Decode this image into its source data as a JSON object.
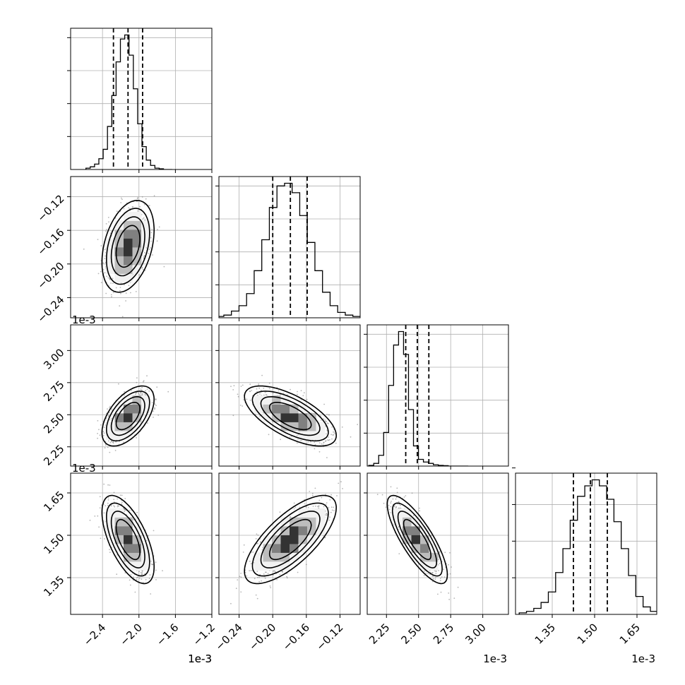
{
  "chart_data": {
    "type": "corner",
    "description_of_panels": "lower-triangular matrix of 1-D histograms and 2-D density plots with contours",
    "offset_label": "1e-3",
    "params": [
      {
        "index": 0,
        "range": [
          -2.75,
          -1.2
        ],
        "ticks": [
          -2.4,
          -2.0,
          -1.6,
          -1.2
        ],
        "tick_labels": [
          "−2.4",
          "−2.0",
          "−1.6",
          "−1.2"
        ],
        "quantiles": [
          -2.28,
          -2.12,
          -1.96
        ],
        "mean": -2.12,
        "sd": 0.11,
        "hist_counts": [
          1,
          2,
          4,
          8,
          15,
          32,
          55,
          80,
          97,
          100,
          85,
          60,
          34,
          17,
          7,
          3,
          1,
          0.5,
          0,
          0
        ]
      },
      {
        "index": 1,
        "range": [
          -0.264,
          -0.096
        ],
        "ticks": [
          -0.24,
          -0.2,
          -0.16,
          -0.12
        ],
        "tick_labels": [
          "−0.24",
          "−0.20",
          "−0.16",
          "−0.12"
        ],
        "quantiles": [
          -0.2,
          -0.179,
          -0.159
        ],
        "mean": -0.179,
        "sd": 0.021,
        "hist_counts": [
          1,
          2,
          5,
          9,
          18,
          35,
          58,
          82,
          98,
          100,
          93,
          76,
          56,
          35,
          19,
          9,
          4,
          2,
          1,
          0.5
        ]
      },
      {
        "index": 2,
        "range": [
          2.1,
          3.2
        ],
        "ticks": [
          2.25,
          2.5,
          2.75,
          3.0
        ],
        "tick_labels": [
          "2.25",
          "2.50",
          "2.75",
          "3.00"
        ],
        "quantiles": [
          2.4,
          2.49,
          2.58
        ],
        "mean": 2.49,
        "sd": 0.09,
        "hist_counts": [
          0.5,
          2,
          8,
          25,
          60,
          90,
          100,
          83,
          42,
          15,
          5,
          3,
          2,
          1,
          0.5,
          0.3,
          0,
          0,
          0,
          0
        ]
      },
      {
        "index": 3,
        "range": [
          1.22,
          1.72
        ],
        "ticks": [
          1.35,
          1.5,
          1.65
        ],
        "tick_labels": [
          "1.35",
          "1.50",
          "1.65"
        ],
        "quantiles": [
          1.425,
          1.485,
          1.545
        ],
        "mean": 1.485,
        "sd": 0.06,
        "hist_counts": [
          1,
          2,
          4,
          8,
          15,
          28,
          44,
          63,
          79,
          86,
          90,
          86,
          77,
          62,
          44,
          26,
          12,
          5,
          2,
          1
        ]
      }
    ],
    "pairs": [
      {
        "row": 1,
        "col": 0,
        "correlation": 0.35
      },
      {
        "row": 2,
        "col": 0,
        "correlation": 0.55
      },
      {
        "row": 2,
        "col": 1,
        "correlation": -0.65
      },
      {
        "row": 3,
        "col": 0,
        "correlation": -0.62
      },
      {
        "row": 3,
        "col": 1,
        "correlation": 0.72
      },
      {
        "row": 3,
        "col": 2,
        "correlation": -0.8
      }
    ],
    "contour_levels_sigma": [
      0.5,
      1.0,
      1.5,
      2.0
    ],
    "grid": true,
    "line_color": "#000000",
    "point_color": "#7a7a7a",
    "density_shades": [
      "#f2f2f2",
      "#bdbdbd",
      "#808080",
      "#333333"
    ]
  }
}
